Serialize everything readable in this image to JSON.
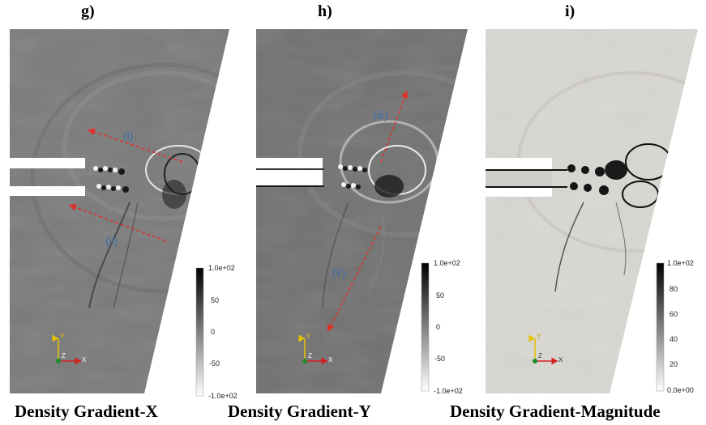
{
  "panels": [
    {
      "letter": "g)",
      "caption": "Density Gradient-X",
      "colorbar": {
        "labels": [
          "1.0e+02",
          "50",
          "0",
          "-50",
          "-1.0e+02"
        ]
      },
      "annotations": [
        "(i)",
        "(ii)"
      ],
      "axes": {
        "y": "Y",
        "z": "Z",
        "x": "X"
      }
    },
    {
      "letter": "h)",
      "caption": "Density Gradient-Y",
      "colorbar": {
        "labels": [
          "1.0e+02",
          "50",
          "0",
          "-50",
          "-1.0e+02"
        ]
      },
      "annotations": [
        "(iii)",
        "(v)"
      ],
      "axes": {
        "y": "Y",
        "z": "Z",
        "x": "X"
      }
    },
    {
      "letter": "i)",
      "caption": "Density Gradient-Magnitude",
      "colorbar": {
        "labels": [
          "1.0e+02",
          "80",
          "60",
          "40",
          "20",
          "0.0e+00"
        ]
      },
      "annotations": [],
      "axes": {
        "y": "Y",
        "z": "Z",
        "x": "X"
      }
    }
  ],
  "colors": {
    "field_gx": "#7b7b7b",
    "field_gy": "#727272",
    "field_mag": "#d9d7d2",
    "arrow": "#e0312b",
    "annotation": "#3a70a8"
  }
}
